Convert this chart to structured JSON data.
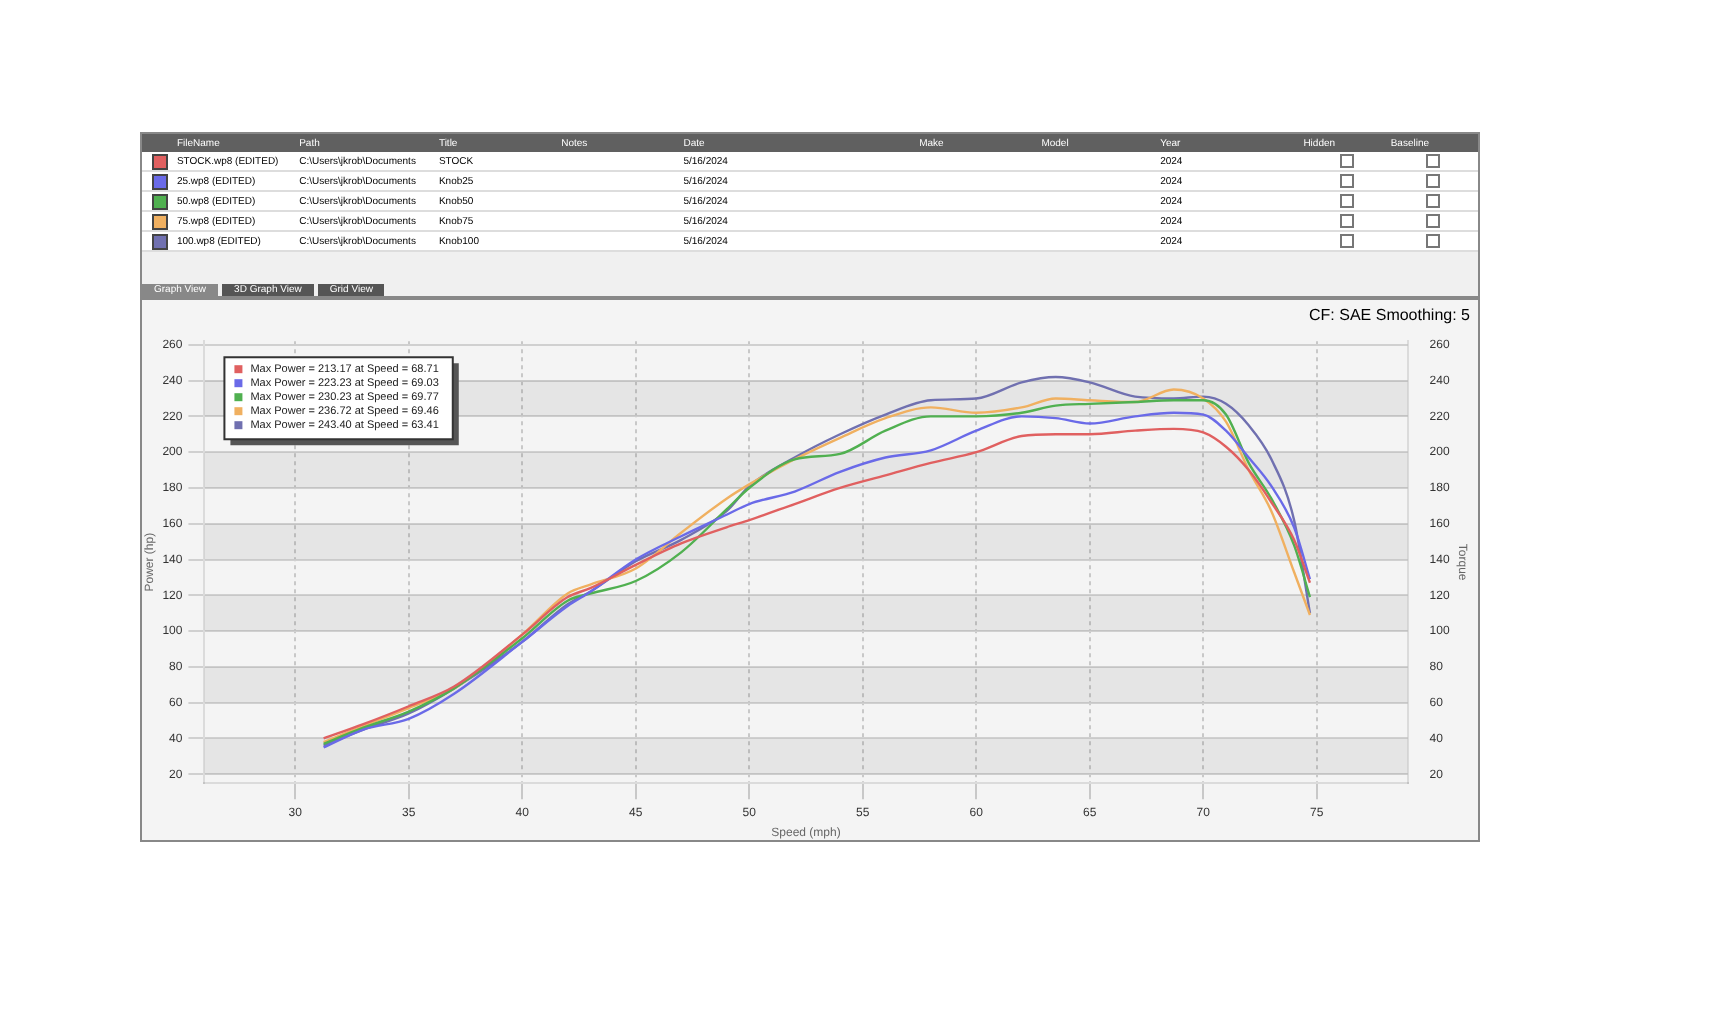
{
  "chart_data": [
    {
      "type": "other",
      "categories": [
        "FileName",
        "Path",
        "Title",
        "Notes",
        "Date",
        "Make",
        "Model",
        "Year",
        "Hidden",
        "Baseline"
      ],
      "cell_labels": [
        [
          "STOCK.wp8 (EDITED)",
          "C:\\Users\\jkrob\\Documents",
          "STOCK",
          null,
          "5/16/2024",
          null,
          null,
          "2024",
          false,
          false
        ],
        [
          "25.wp8 (EDITED)",
          "C:\\Users\\jkrob\\Documents",
          "Knob25",
          null,
          "5/16/2024",
          null,
          null,
          "2024",
          false,
          false
        ],
        [
          "50.wp8 (EDITED)",
          "C:\\Users\\jkrob\\Documents",
          "Knob50",
          null,
          "5/16/2024",
          null,
          null,
          "2024",
          false,
          false
        ],
        [
          "75.wp8 (EDITED)",
          "C:\\Users\\jkrob\\Documents",
          "Knob75",
          null,
          "5/16/2024",
          null,
          null,
          "2024",
          false,
          false
        ],
        [
          "100.wp8 (EDITED)",
          "C:\\Users\\jkrob\\Documents",
          "Knob100",
          null,
          "5/16/2024",
          null,
          null,
          "2024",
          false,
          false
        ]
      ],
      "annotations": [
        "Graph View",
        "3D Graph View",
        "Grid View"
      ]
    },
    {
      "type": "line",
      "xlabel": "Speed (mph)",
      "ylabel": "Power (hp)",
      "y2label": "Torque",
      "annotations": [
        "CF: SAE Smoothing: 5"
      ],
      "xlim": [
        26,
        79
      ],
      "xticks": [
        30,
        35,
        40,
        45,
        50,
        55,
        60,
        65,
        70,
        75
      ],
      "ylim": [
        15,
        262
      ],
      "yticks": [
        20,
        40,
        60,
        80,
        100,
        120,
        140,
        160,
        180,
        200,
        220,
        240,
        260
      ],
      "y2lim": [
        15,
        262
      ],
      "y2ticks": [
        20,
        40,
        60,
        80,
        100,
        120,
        140,
        160,
        180,
        200,
        220,
        240,
        260
      ],
      "grid": true,
      "legend": "top left",
      "x": [
        31.25,
        33,
        35,
        37,
        40,
        42,
        43,
        45,
        47,
        49,
        50,
        52,
        54,
        56,
        58,
        60,
        62,
        63.5,
        65,
        67,
        68.7,
        70,
        71,
        72,
        73,
        74,
        74.7
      ],
      "series": [
        {
          "name": "Max Power = 213.17 at Speed = 68.71",
          "color": "#e06060",
          "values": [
            40,
            48,
            58,
            69,
            98,
            119,
            124,
            137,
            149,
            158,
            162,
            171,
            180,
            187,
            194,
            200,
            209,
            210,
            210,
            212,
            213,
            211,
            203,
            190,
            172,
            151,
            127
          ]
        },
        {
          "name": "Max Power = 223.23 at Speed = 69.03",
          "color": "#6a6ae8",
          "values": [
            35,
            45,
            51,
            65,
            94,
            114,
            122,
            140,
            153,
            165,
            171,
            178,
            189,
            197,
            201,
            212,
            220,
            219,
            216,
            220,
            222,
            221,
            212,
            197,
            181,
            158,
            129
          ]
        },
        {
          "name": "Max Power = 230.23 at Speed = 69.77",
          "color": "#50b050",
          "values": [
            37,
            46,
            55,
            68,
            96,
            117,
            121,
            128,
            144,
            168,
            180,
            196,
            199,
            212,
            220,
            220,
            222,
            226,
            227,
            228,
            229,
            229,
            221,
            194,
            174,
            148,
            119
          ]
        },
        {
          "name": "Max Power = 236.72 at Speed = 69.46",
          "color": "#f0b060",
          "values": [
            38,
            47,
            57,
            68,
            98,
            121,
            126,
            135,
            155,
            174,
            182,
            196,
            208,
            219,
            225,
            222,
            225,
            230,
            229,
            228,
            235,
            230,
            217,
            190,
            167,
            133,
            109
          ]
        },
        {
          "name": "Max Power = 243.40 at Speed = 63.41",
          "color": "#7070b0",
          "values": [
            36,
            45,
            54,
            68,
            94,
            115,
            122,
            139,
            151,
            167,
            181,
            197,
            210,
            221,
            229,
            230,
            239,
            242,
            239,
            231,
            230,
            231,
            227,
            215,
            196,
            162,
            110
          ]
        }
      ]
    }
  ]
}
